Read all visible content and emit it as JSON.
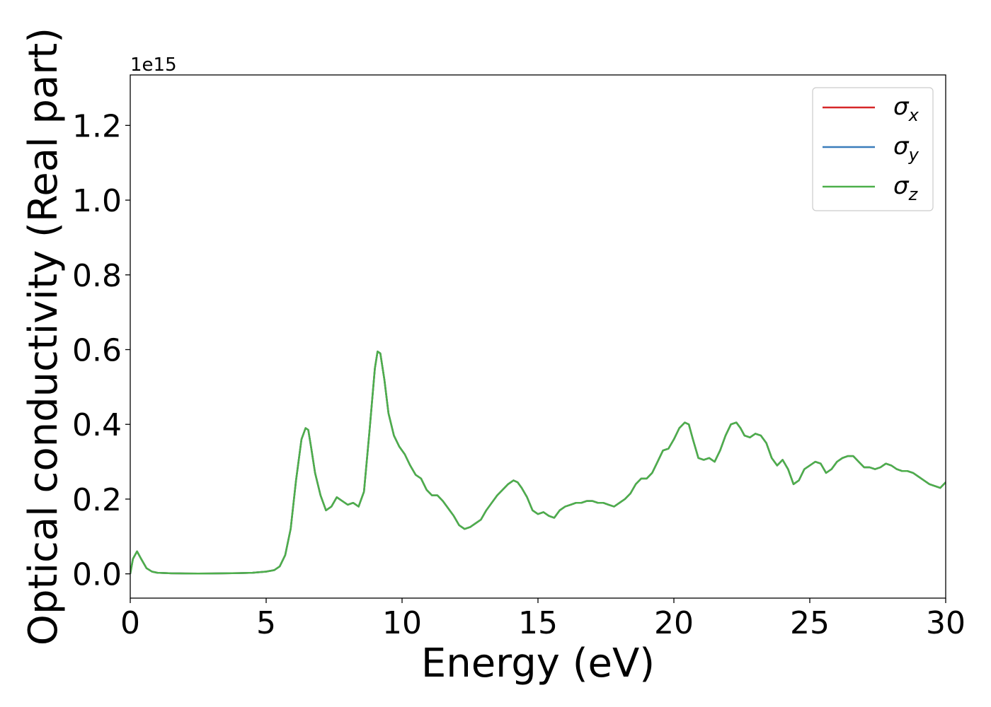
{
  "chart_data": {
    "type": "line",
    "xlabel": "Energy (eV)",
    "ylabel": "Optical conductivity (Real part)",
    "offset_label": "1e15",
    "xlim": [
      0,
      30
    ],
    "ylim": [
      -0.065,
      1.335
    ],
    "xticks": [
      0,
      5,
      10,
      15,
      20,
      25,
      30
    ],
    "yticks": [
      0.0,
      0.2,
      0.4,
      0.6,
      0.8,
      1.0,
      1.2
    ],
    "xtick_labels": [
      "0",
      "5",
      "10",
      "15",
      "20",
      "25",
      "30"
    ],
    "ytick_labels": [
      "0.0",
      "0.2",
      "0.4",
      "0.6",
      "0.8",
      "1.0",
      "1.2"
    ],
    "legend_position": "upper-right",
    "grid": false,
    "series": [
      {
        "name": "σx",
        "base": "σ",
        "sub": "x",
        "color": "#d62728",
        "x": [
          0,
          0.1,
          0.25,
          0.4,
          0.6,
          0.8,
          1.0,
          1.5,
          2.0,
          2.5,
          3.0,
          3.5,
          4.0,
          4.5,
          5.0,
          5.3,
          5.5,
          5.7,
          5.9,
          6.1,
          6.3,
          6.45,
          6.55,
          6.65,
          6.8,
          7.0,
          7.2,
          7.4,
          7.6,
          7.8,
          8.0,
          8.2,
          8.4,
          8.6,
          8.8,
          9.0,
          9.1,
          9.2,
          9.35,
          9.5,
          9.7,
          9.9,
          10.1,
          10.3,
          10.5,
          10.7,
          10.9,
          11.1,
          11.3,
          11.5,
          11.7,
          11.9,
          12.1,
          12.3,
          12.5,
          12.7,
          12.9,
          13.1,
          13.3,
          13.5,
          13.7,
          13.9,
          14.1,
          14.25,
          14.4,
          14.6,
          14.8,
          15.0,
          15.2,
          15.4,
          15.6,
          15.8,
          16.0,
          16.2,
          16.4,
          16.6,
          16.8,
          17.0,
          17.2,
          17.4,
          17.6,
          17.8,
          18.0,
          18.2,
          18.4,
          18.6,
          18.8,
          19.0,
          19.2,
          19.4,
          19.6,
          19.8,
          20.0,
          20.2,
          20.4,
          20.55,
          20.7,
          20.9,
          21.1,
          21.3,
          21.5,
          21.7,
          21.9,
          22.1,
          22.3,
          22.45,
          22.6,
          22.8,
          23.0,
          23.2,
          23.4,
          23.6,
          23.8,
          24.0,
          24.2,
          24.4,
          24.6,
          24.8,
          25.0,
          25.2,
          25.4,
          25.6,
          25.8,
          26.0,
          26.2,
          26.4,
          26.6,
          26.8,
          27.0,
          27.2,
          27.4,
          27.6,
          27.8,
          28.0,
          28.2,
          28.4,
          28.6,
          28.8,
          29.0,
          29.2,
          29.4,
          29.6,
          29.8,
          30.0
        ],
        "y": [
          0.0,
          0.04,
          0.06,
          0.04,
          0.015,
          0.006,
          0.003,
          0.0015,
          0.001,
          0.0008,
          0.001,
          0.0015,
          0.002,
          0.003,
          0.006,
          0.01,
          0.02,
          0.05,
          0.12,
          0.25,
          0.36,
          0.39,
          0.385,
          0.34,
          0.27,
          0.21,
          0.17,
          0.18,
          0.205,
          0.195,
          0.185,
          0.19,
          0.18,
          0.22,
          0.38,
          0.55,
          0.595,
          0.59,
          0.52,
          0.43,
          0.37,
          0.34,
          0.32,
          0.29,
          0.265,
          0.255,
          0.225,
          0.21,
          0.21,
          0.195,
          0.175,
          0.155,
          0.13,
          0.12,
          0.125,
          0.135,
          0.145,
          0.17,
          0.19,
          0.21,
          0.225,
          0.24,
          0.25,
          0.245,
          0.23,
          0.205,
          0.17,
          0.16,
          0.165,
          0.155,
          0.15,
          0.17,
          0.18,
          0.185,
          0.19,
          0.19,
          0.195,
          0.195,
          0.19,
          0.19,
          0.185,
          0.18,
          0.19,
          0.2,
          0.215,
          0.24,
          0.255,
          0.255,
          0.27,
          0.3,
          0.33,
          0.335,
          0.36,
          0.39,
          0.405,
          0.4,
          0.36,
          0.31,
          0.305,
          0.31,
          0.3,
          0.33,
          0.37,
          0.4,
          0.405,
          0.39,
          0.37,
          0.365,
          0.375,
          0.37,
          0.35,
          0.31,
          0.29,
          0.305,
          0.28,
          0.24,
          0.25,
          0.28,
          0.29,
          0.3,
          0.295,
          0.27,
          0.28,
          0.3,
          0.31,
          0.315,
          0.315,
          0.3,
          0.285,
          0.285,
          0.28,
          0.285,
          0.295,
          0.29,
          0.28,
          0.275,
          0.275,
          0.27,
          0.26,
          0.25,
          0.24,
          0.235,
          0.23,
          0.245
        ]
      },
      {
        "name": "σy",
        "base": "σ",
        "sub": "y",
        "color": "#3a7dbb",
        "x": [
          0,
          0.1,
          0.25,
          0.4,
          0.6,
          0.8,
          1.0,
          1.5,
          2.0,
          2.5,
          3.0,
          3.5,
          4.0,
          4.5,
          5.0,
          5.3,
          5.5,
          5.7,
          5.9,
          6.1,
          6.3,
          6.45,
          6.55,
          6.65,
          6.8,
          7.0,
          7.2,
          7.4,
          7.6,
          7.8,
          8.0,
          8.2,
          8.4,
          8.6,
          8.8,
          9.0,
          9.1,
          9.2,
          9.35,
          9.5,
          9.7,
          9.9,
          10.1,
          10.3,
          10.5,
          10.7,
          10.9,
          11.1,
          11.3,
          11.5,
          11.7,
          11.9,
          12.1,
          12.3,
          12.5,
          12.7,
          12.9,
          13.1,
          13.3,
          13.5,
          13.7,
          13.9,
          14.1,
          14.25,
          14.4,
          14.6,
          14.8,
          15.0,
          15.2,
          15.4,
          15.6,
          15.8,
          16.0,
          16.2,
          16.4,
          16.6,
          16.8,
          17.0,
          17.2,
          17.4,
          17.6,
          17.8,
          18.0,
          18.2,
          18.4,
          18.6,
          18.8,
          19.0,
          19.2,
          19.4,
          19.6,
          19.8,
          20.0,
          20.2,
          20.4,
          20.55,
          20.7,
          20.9,
          21.1,
          21.3,
          21.5,
          21.7,
          21.9,
          22.1,
          22.3,
          22.45,
          22.6,
          22.8,
          23.0,
          23.2,
          23.4,
          23.6,
          23.8,
          24.0,
          24.2,
          24.4,
          24.6,
          24.8,
          25.0,
          25.2,
          25.4,
          25.6,
          25.8,
          26.0,
          26.2,
          26.4,
          26.6,
          26.8,
          27.0,
          27.2,
          27.4,
          27.6,
          27.8,
          28.0,
          28.2,
          28.4,
          28.6,
          28.8,
          29.0,
          29.2,
          29.4,
          29.6,
          29.8,
          30.0
        ],
        "y": [
          0.0,
          0.04,
          0.06,
          0.04,
          0.015,
          0.006,
          0.003,
          0.0015,
          0.001,
          0.0008,
          0.001,
          0.0015,
          0.002,
          0.003,
          0.006,
          0.01,
          0.02,
          0.05,
          0.12,
          0.25,
          0.36,
          0.39,
          0.385,
          0.34,
          0.27,
          0.21,
          0.17,
          0.18,
          0.205,
          0.195,
          0.185,
          0.19,
          0.18,
          0.22,
          0.38,
          0.55,
          0.595,
          0.59,
          0.52,
          0.43,
          0.37,
          0.34,
          0.32,
          0.29,
          0.265,
          0.255,
          0.225,
          0.21,
          0.21,
          0.195,
          0.175,
          0.155,
          0.13,
          0.12,
          0.125,
          0.135,
          0.145,
          0.17,
          0.19,
          0.21,
          0.225,
          0.24,
          0.25,
          0.245,
          0.23,
          0.205,
          0.17,
          0.16,
          0.165,
          0.155,
          0.15,
          0.17,
          0.18,
          0.185,
          0.19,
          0.19,
          0.195,
          0.195,
          0.19,
          0.19,
          0.185,
          0.18,
          0.19,
          0.2,
          0.215,
          0.24,
          0.255,
          0.255,
          0.27,
          0.3,
          0.33,
          0.335,
          0.36,
          0.39,
          0.405,
          0.4,
          0.36,
          0.31,
          0.305,
          0.31,
          0.3,
          0.33,
          0.37,
          0.4,
          0.405,
          0.39,
          0.37,
          0.365,
          0.375,
          0.37,
          0.35,
          0.31,
          0.29,
          0.305,
          0.28,
          0.24,
          0.25,
          0.28,
          0.29,
          0.3,
          0.295,
          0.27,
          0.28,
          0.3,
          0.31,
          0.315,
          0.315,
          0.3,
          0.285,
          0.285,
          0.28,
          0.285,
          0.295,
          0.29,
          0.28,
          0.275,
          0.275,
          0.27,
          0.26,
          0.25,
          0.24,
          0.235,
          0.23,
          0.245
        ]
      },
      {
        "name": "σz",
        "base": "σ",
        "sub": "z",
        "color": "#4daf4a",
        "x": [
          0,
          0.1,
          0.25,
          0.4,
          0.6,
          0.8,
          1.0,
          1.5,
          2.0,
          2.5,
          3.0,
          3.5,
          4.0,
          4.5,
          5.0,
          5.3,
          5.5,
          5.7,
          5.9,
          6.1,
          6.3,
          6.45,
          6.55,
          6.65,
          6.8,
          7.0,
          7.2,
          7.4,
          7.6,
          7.8,
          8.0,
          8.2,
          8.4,
          8.6,
          8.8,
          9.0,
          9.1,
          9.2,
          9.35,
          9.5,
          9.7,
          9.9,
          10.1,
          10.3,
          10.5,
          10.7,
          10.9,
          11.1,
          11.3,
          11.5,
          11.7,
          11.9,
          12.1,
          12.3,
          12.5,
          12.7,
          12.9,
          13.1,
          13.3,
          13.5,
          13.7,
          13.9,
          14.1,
          14.25,
          14.4,
          14.6,
          14.8,
          15.0,
          15.2,
          15.4,
          15.6,
          15.8,
          16.0,
          16.2,
          16.4,
          16.6,
          16.8,
          17.0,
          17.2,
          17.4,
          17.6,
          17.8,
          18.0,
          18.2,
          18.4,
          18.6,
          18.8,
          19.0,
          19.2,
          19.4,
          19.6,
          19.8,
          20.0,
          20.2,
          20.4,
          20.55,
          20.7,
          20.9,
          21.1,
          21.3,
          21.5,
          21.7,
          21.9,
          22.1,
          22.3,
          22.45,
          22.6,
          22.8,
          23.0,
          23.2,
          23.4,
          23.6,
          23.8,
          24.0,
          24.2,
          24.4,
          24.6,
          24.8,
          25.0,
          25.2,
          25.4,
          25.6,
          25.8,
          26.0,
          26.2,
          26.4,
          26.6,
          26.8,
          27.0,
          27.2,
          27.4,
          27.6,
          27.8,
          28.0,
          28.2,
          28.4,
          28.6,
          28.8,
          29.0,
          29.2,
          29.4,
          29.6,
          29.8,
          30.0
        ],
        "y": [
          0.0,
          0.04,
          0.06,
          0.04,
          0.015,
          0.006,
          0.003,
          0.0015,
          0.001,
          0.0008,
          0.001,
          0.0015,
          0.002,
          0.003,
          0.006,
          0.01,
          0.02,
          0.05,
          0.12,
          0.25,
          0.36,
          0.39,
          0.385,
          0.34,
          0.27,
          0.21,
          0.17,
          0.18,
          0.205,
          0.195,
          0.185,
          0.19,
          0.18,
          0.22,
          0.38,
          0.55,
          0.595,
          0.59,
          0.52,
          0.43,
          0.37,
          0.34,
          0.32,
          0.29,
          0.265,
          0.255,
          0.225,
          0.21,
          0.21,
          0.195,
          0.175,
          0.155,
          0.13,
          0.12,
          0.125,
          0.135,
          0.145,
          0.17,
          0.19,
          0.21,
          0.225,
          0.24,
          0.25,
          0.245,
          0.23,
          0.205,
          0.17,
          0.16,
          0.165,
          0.155,
          0.15,
          0.17,
          0.18,
          0.185,
          0.19,
          0.19,
          0.195,
          0.195,
          0.19,
          0.19,
          0.185,
          0.18,
          0.19,
          0.2,
          0.215,
          0.24,
          0.255,
          0.255,
          0.27,
          0.3,
          0.33,
          0.335,
          0.36,
          0.39,
          0.405,
          0.4,
          0.36,
          0.31,
          0.305,
          0.31,
          0.3,
          0.33,
          0.37,
          0.4,
          0.405,
          0.39,
          0.37,
          0.365,
          0.375,
          0.37,
          0.35,
          0.31,
          0.29,
          0.305,
          0.28,
          0.24,
          0.25,
          0.28,
          0.29,
          0.3,
          0.295,
          0.27,
          0.28,
          0.3,
          0.31,
          0.315,
          0.315,
          0.3,
          0.285,
          0.285,
          0.28,
          0.285,
          0.295,
          0.29,
          0.28,
          0.275,
          0.275,
          0.27,
          0.26,
          0.25,
          0.24,
          0.235,
          0.23,
          0.245
        ]
      }
    ]
  }
}
